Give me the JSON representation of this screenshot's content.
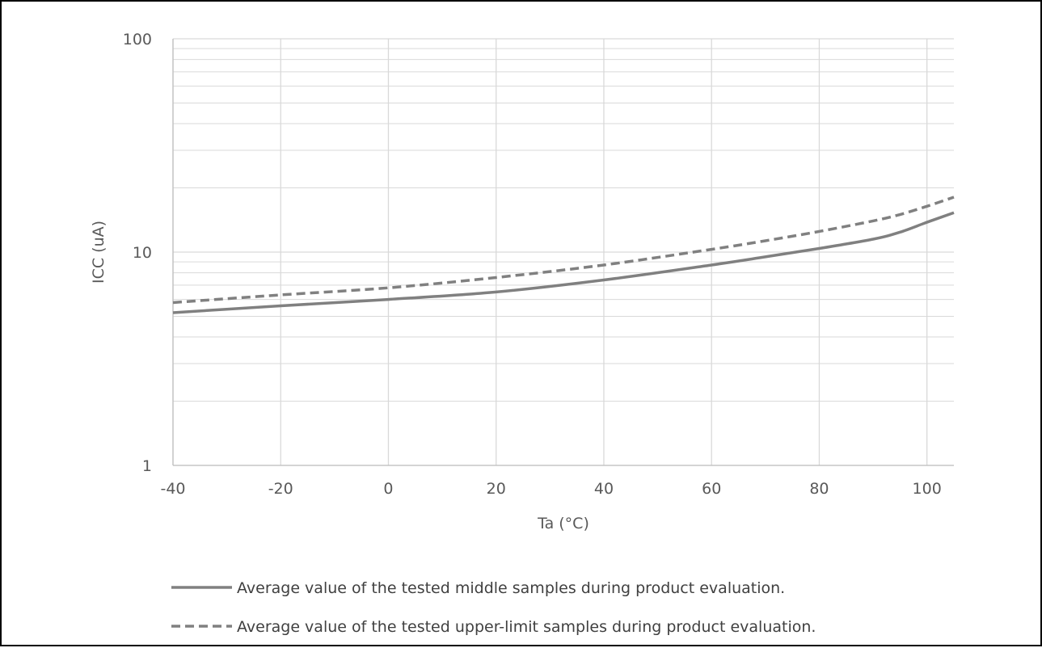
{
  "chart_data": {
    "type": "line",
    "title": "",
    "xlabel": "Ta (°C)",
    "ylabel": "ICC (uA)",
    "xlim": [
      -40,
      105
    ],
    "ylim": [
      1,
      100
    ],
    "yscale": "log",
    "grid": true,
    "legend_position": "bottom",
    "x_ticks": [
      "-40",
      "-20",
      "0",
      "20",
      "40",
      "60",
      "80",
      "100"
    ],
    "y_ticks": [
      "1",
      "10",
      "100"
    ],
    "colors": {
      "series": "#808080",
      "grid": "#d9d9d9",
      "text": "#595959"
    },
    "series": [
      {
        "name": "Average value of the tested middle samples during product evaluation.",
        "style": "solid",
        "x": [
          -40,
          -20,
          0,
          20,
          40,
          60,
          70,
          80,
          90,
          95,
          100,
          105
        ],
        "y": [
          5.2,
          5.6,
          6.0,
          6.5,
          7.4,
          8.7,
          9.5,
          10.4,
          11.5,
          12.4,
          13.8,
          15.3
        ]
      },
      {
        "name": "Average value of the tested upper-limit samples during product evaluation.",
        "style": "dashed",
        "x": [
          -40,
          -20,
          0,
          20,
          40,
          60,
          70,
          80,
          90,
          95,
          100,
          105
        ],
        "y": [
          5.8,
          6.3,
          6.8,
          7.6,
          8.7,
          10.3,
          11.3,
          12.5,
          14.0,
          15.0,
          16.4,
          18.1
        ]
      }
    ]
  }
}
